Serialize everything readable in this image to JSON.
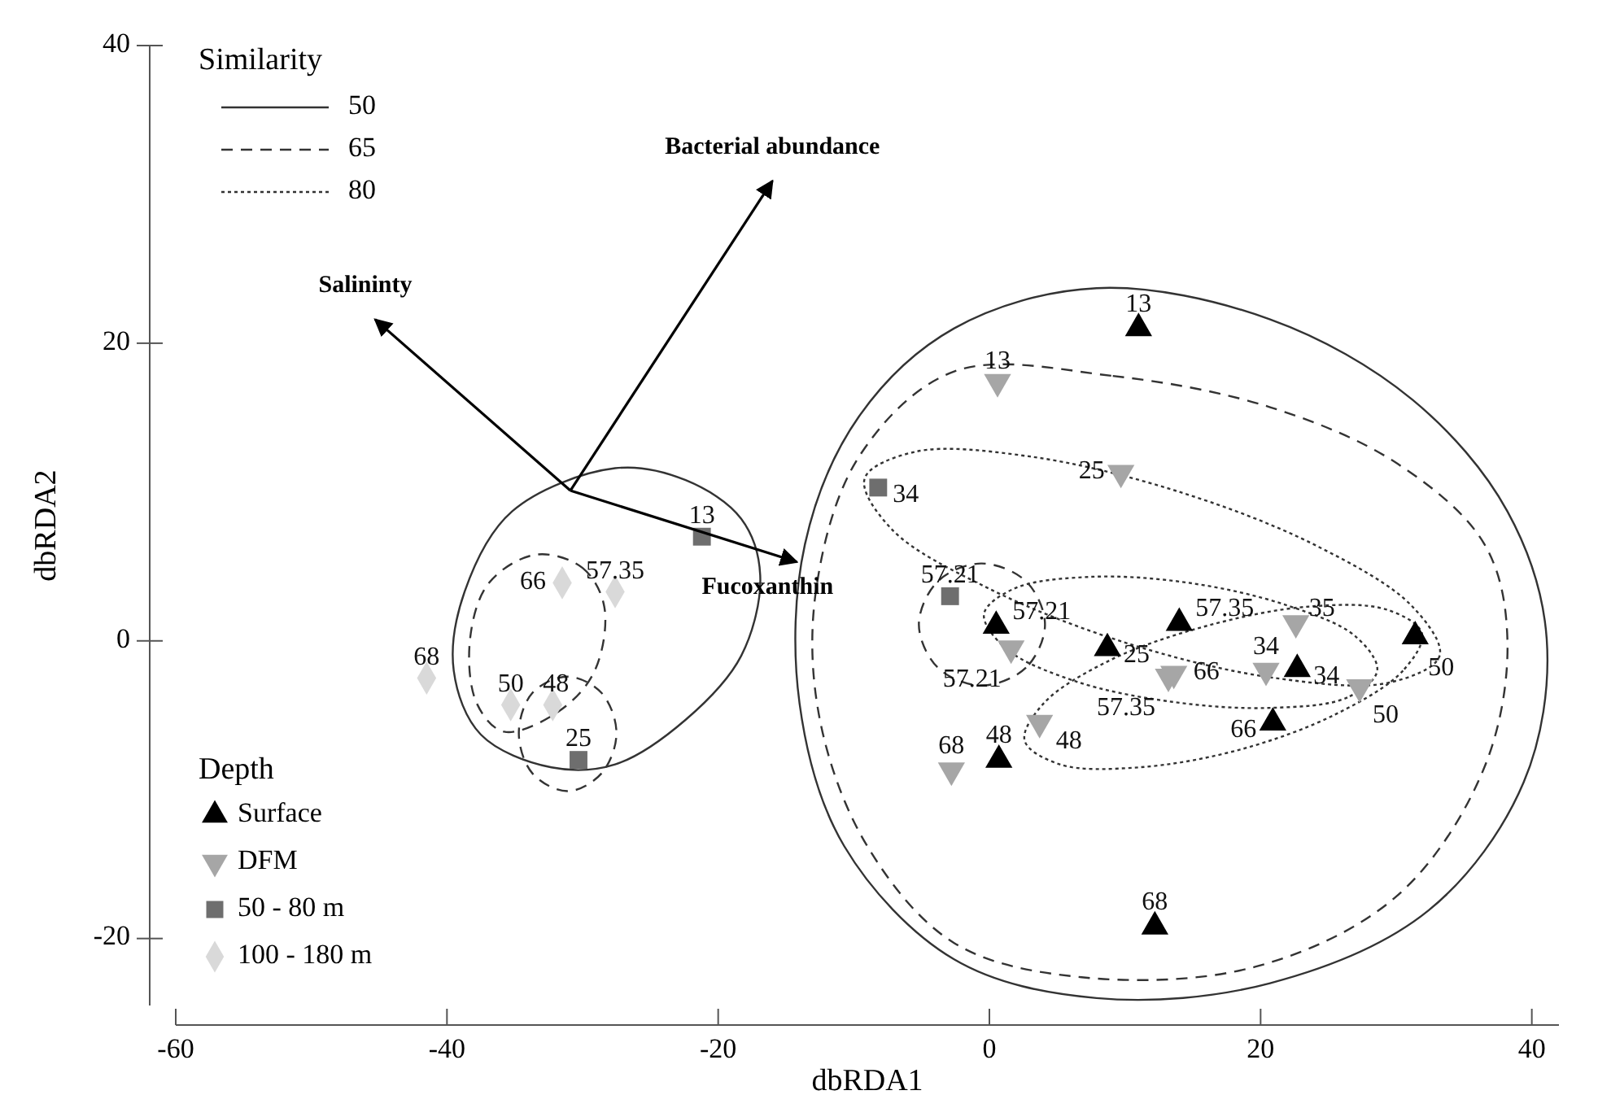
{
  "chart_data": {
    "type": "scatter",
    "xlabel": "dbRDA1",
    "ylabel": "dbRDA2",
    "xlim": [
      -60,
      42
    ],
    "ylim": [
      -24.5,
      40
    ],
    "xticks": [
      -60,
      -40,
      -20,
      0,
      20,
      40
    ],
    "yticks": [
      -20,
      0,
      20,
      40
    ],
    "legend": "left",
    "legend_title": "Depth",
    "grid": false,
    "annotations": [
      "Similarity",
      "50",
      "65",
      "80",
      {
        "text": "13",
        "x": 11.0,
        "y": 21.0
      },
      {
        "text": "57.21",
        "x": 0.5,
        "y": 1.0
      },
      {
        "text": "25",
        "x": 8.7,
        "y": -0.5
      },
      {
        "text": "57.35",
        "x": 14.0,
        "y": 1.2
      },
      {
        "text": "34",
        "x": 22.7,
        "y": -1.9
      },
      {
        "text": "50",
        "x": 31.4,
        "y": 0.3
      },
      {
        "text": "66",
        "x": 20.9,
        "y": -5.5
      },
      {
        "text": "48",
        "x": 0.7,
        "y": -8.0
      },
      {
        "text": "68",
        "x": 12.2,
        "y": -19.2
      },
      {
        "text": "13",
        "x": 0.6,
        "y": 17.4
      },
      {
        "text": "25",
        "x": 9.7,
        "y": 11.3
      },
      {
        "text": "57.21",
        "x": 1.6,
        "y": -0.5
      },
      {
        "text": "66",
        "x": 13.6,
        "y": -2.2
      },
      {
        "text": "57.35",
        "x": 13.2,
        "y": -2.4
      },
      {
        "text": "35",
        "x": 22.6,
        "y": 1.2
      },
      {
        "text": "34",
        "x": 20.4,
        "y": -2.0
      },
      {
        "text": "50",
        "x": 27.3,
        "y": -3.1
      },
      {
        "text": "48",
        "x": 3.7,
        "y": -5.5
      },
      {
        "text": "68",
        "x": -2.8,
        "y": -8.7
      },
      {
        "text": "34",
        "x": -8.2,
        "y": 10.3
      },
      {
        "text": "57.21",
        "x": -2.9,
        "y": 3.0
      },
      {
        "text": "13",
        "x": -21.2,
        "y": 7.0
      },
      {
        "text": "25",
        "x": -30.3,
        "y": -8.0
      },
      {
        "text": "66",
        "x": -31.5,
        "y": 3.9
      },
      {
        "text": "57.35",
        "x": -27.6,
        "y": 3.3
      },
      {
        "text": "68",
        "x": -41.5,
        "y": -2.5
      },
      {
        "text": "50",
        "x": -35.3,
        "y": -4.3
      },
      {
        "text": "48",
        "x": -32.2,
        "y": -4.3
      }
    ],
    "series": [
      {
        "type": "scatter",
        "name": "Surface",
        "color": "#000000",
        "marker": "triangle",
        "x": [
          11.0,
          0.5,
          8.7,
          14.0,
          22.7,
          31.4,
          20.9,
          0.7,
          12.2
        ],
        "values": [
          21.0,
          1.0,
          -0.5,
          1.2,
          -1.9,
          0.3,
          -5.5,
          -8.0,
          -19.2
        ]
      },
      {
        "type": "scatter",
        "name": "DFM",
        "color": "#a6a6a6",
        "marker": "triangle-down",
        "x": [
          0.6,
          9.7,
          1.6,
          13.6,
          13.2,
          22.6,
          20.4,
          27.3,
          3.7,
          -2.8
        ],
        "values": [
          17.4,
          11.3,
          -0.5,
          -2.2,
          -2.4,
          1.2,
          -2.0,
          -3.1,
          -5.5,
          -8.7
        ]
      },
      {
        "type": "scatter",
        "name": "50 - 80 m",
        "color": "#6e6e6e",
        "marker": "square",
        "x": [
          -8.2,
          -2.9,
          -21.2,
          -30.3
        ],
        "values": [
          10.3,
          3.0,
          7.0,
          -8.0
        ]
      },
      {
        "type": "scatter",
        "name": "100 - 180 m",
        "color": "#d9d9d9",
        "marker": "diamond",
        "x": [
          -31.5,
          -27.6,
          -41.5,
          -35.3,
          -32.2
        ],
        "values": [
          3.9,
          3.3,
          -2.5,
          -4.3,
          -4.3
        ]
      },
      {
        "type": "line",
        "name": "Salininty",
        "color": "#000000",
        "x": [
          -30.9,
          -45.3
        ],
        "values": [
          10.1,
          21.6
        ]
      },
      {
        "type": "line",
        "name": "Bacterial abundance",
        "color": "#000000",
        "x": [
          -30.9,
          -16.0
        ],
        "values": [
          10.1,
          30.9
        ]
      },
      {
        "type": "line",
        "name": "Fucoxanthin",
        "color": "#000000",
        "x": [
          -30.9,
          -14.2
        ],
        "values": [
          10.1,
          5.3
        ]
      }
    ]
  }
}
